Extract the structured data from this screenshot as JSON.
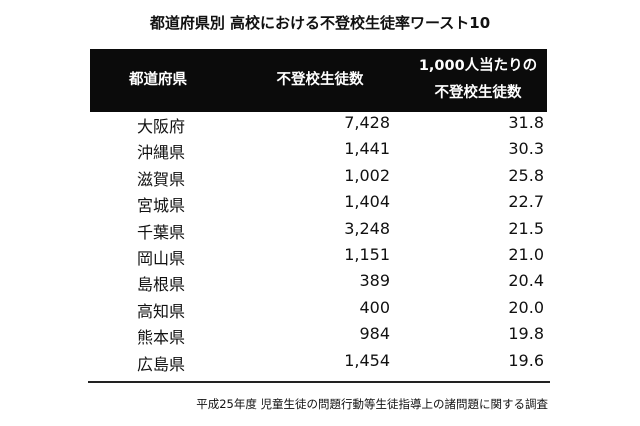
{
  "title": "都道府県別 高校における不登校生徒率ワースト10",
  "table": {
    "headers": [
      "都道府県",
      "不登校生徒数",
      "1,000人当たりの",
      "不登校生徒数"
    ],
    "rows": [
      {
        "prefecture": "大阪府",
        "count": "7,428",
        "per1000": "31.8"
      },
      {
        "prefecture": "沖縄県",
        "count": "1,441",
        "per1000": "30.3"
      },
      {
        "prefecture": "滋賀県",
        "count": "1,002",
        "per1000": "25.8"
      },
      {
        "prefecture": "宮城県",
        "count": "1,404",
        "per1000": "22.7"
      },
      {
        "prefecture": "千葉県",
        "count": "3,248",
        "per1000": "21.5"
      },
      {
        "prefecture": "岡山県",
        "count": "1,151",
        "per1000": "21.0"
      },
      {
        "prefecture": "島根県",
        "count": "389",
        "per1000": "20.4"
      },
      {
        "prefecture": "高知県",
        "count": "400",
        "per1000": "20.0"
      },
      {
        "prefecture": "熊本県",
        "count": "984",
        "per1000": "19.8"
      },
      {
        "prefecture": "広島県",
        "count": "1,454",
        "per1000": "19.6"
      }
    ]
  },
  "source": "平成25年度 児童生徒の問題行動等生徒指導上の諸問題に関する調査",
  "colors": {
    "header_bg": "#0b0b0b",
    "header_text": "#ffffff",
    "text": "#111111"
  },
  "chart_data": {
    "type": "table",
    "title": "都道府県別 高校における不登校生徒率ワースト10",
    "columns": [
      "都道府県",
      "不登校生徒数",
      "1,000人当たりの不登校生徒数"
    ],
    "categories": [
      "大阪府",
      "沖縄県",
      "滋賀県",
      "宮城県",
      "千葉県",
      "岡山県",
      "島根県",
      "高知県",
      "熊本県",
      "広島県"
    ],
    "series": [
      {
        "name": "不登校生徒数",
        "values": [
          7428,
          1441,
          1002,
          1404,
          3248,
          1151,
          389,
          400,
          984,
          1454
        ]
      },
      {
        "name": "1,000人当たりの不登校生徒数",
        "values": [
          31.8,
          30.3,
          25.8,
          22.7,
          21.5,
          21.0,
          20.4,
          20.0,
          19.8,
          19.6
        ]
      }
    ],
    "note": "平成25年度 児童生徒の問題行動等生徒指導上の諸問題に関する調査"
  }
}
